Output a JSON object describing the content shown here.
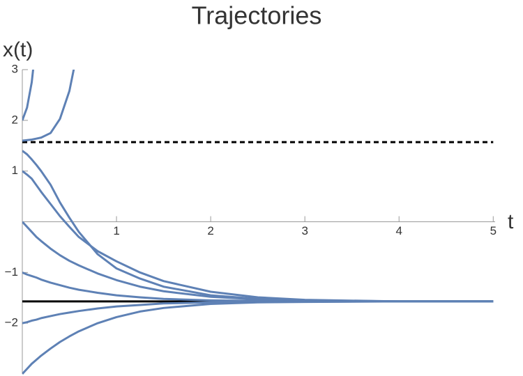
{
  "chart_data": {
    "type": "line",
    "title": "Trajectories",
    "x_label": "t",
    "y_label": "x(t)",
    "x": [
      0,
      0.05,
      0.1,
      0.15,
      0.2,
      0.3,
      0.4,
      0.5,
      0.6,
      0.8,
      1,
      1.25,
      1.5,
      2,
      2.5,
      3,
      4,
      5
    ],
    "series": [
      {
        "color": "#5e81b5",
        "values": [
          2,
          2.25,
          2.75,
          3.6,
          null,
          null,
          null,
          null,
          null,
          null,
          null,
          null,
          null,
          null,
          null,
          null,
          null,
          null
        ]
      },
      {
        "color": "#5e81b5",
        "values": [
          1.6,
          1.61,
          1.62,
          1.64,
          1.66,
          1.75,
          2.03,
          2.58,
          3.5,
          null,
          null,
          null,
          null,
          null,
          null,
          null,
          null,
          null
        ]
      },
      {
        "color": "#5e81b5",
        "values": [
          1.4,
          1.33,
          1.23,
          1.12,
          1.0,
          0.73,
          0.38,
          0.08,
          -0.2,
          -0.64,
          -0.92,
          -1.12,
          -1.28,
          -1.45,
          -1.52,
          -1.55,
          -1.57,
          -1.57
        ]
      },
      {
        "color": "#5e81b5",
        "values": [
          1,
          0.93,
          0.85,
          0.72,
          0.59,
          0.35,
          0.11,
          -0.1,
          -0.3,
          -0.58,
          -0.78,
          -1.0,
          -1.17,
          -1.38,
          -1.49,
          -1.54,
          -1.57,
          -1.57
        ]
      },
      {
        "color": "#5e81b5",
        "values": [
          0,
          -0.1,
          -0.2,
          -0.3,
          -0.38,
          -0.53,
          -0.66,
          -0.77,
          -0.86,
          -1.02,
          -1.15,
          -1.28,
          -1.37,
          -1.48,
          -1.53,
          -1.56,
          -1.57,
          -1.57
        ]
      },
      {
        "color": "#5e81b5",
        "values": [
          -1,
          -1.04,
          -1.07,
          -1.1,
          -1.14,
          -1.2,
          -1.25,
          -1.3,
          -1.34,
          -1.4,
          -1.45,
          -1.49,
          -1.52,
          -1.55,
          -1.56,
          -1.57,
          -1.57,
          -1.57
        ]
      },
      {
        "color": "#5e81b5",
        "values": [
          -2,
          -1.98,
          -1.95,
          -1.93,
          -1.9,
          -1.86,
          -1.82,
          -1.79,
          -1.76,
          -1.71,
          -1.67,
          -1.64,
          -1.61,
          -1.59,
          -1.58,
          -1.575,
          -1.571,
          -1.571
        ]
      },
      {
        "color": "#5e81b5",
        "values": [
          -3,
          -2.9,
          -2.8,
          -2.72,
          -2.64,
          -2.5,
          -2.37,
          -2.26,
          -2.16,
          -2.0,
          -1.88,
          -1.77,
          -1.7,
          -1.62,
          -1.59,
          -1.58,
          -1.571,
          -1.571
        ]
      }
    ],
    "hlines": [
      {
        "value": 1.5708,
        "style": "dashed",
        "color": "#000000"
      },
      {
        "value": -1.5708,
        "style": "solid",
        "color": "#000000"
      }
    ],
    "xlim": [
      0,
      5.02
    ],
    "ylim": [
      -3,
      3
    ],
    "xticks": [
      1,
      2,
      3,
      4,
      5
    ],
    "yticks": [
      {
        "value": -2,
        "label": "−2"
      },
      {
        "value": -1,
        "label": "−1"
      },
      1,
      2,
      3
    ]
  }
}
